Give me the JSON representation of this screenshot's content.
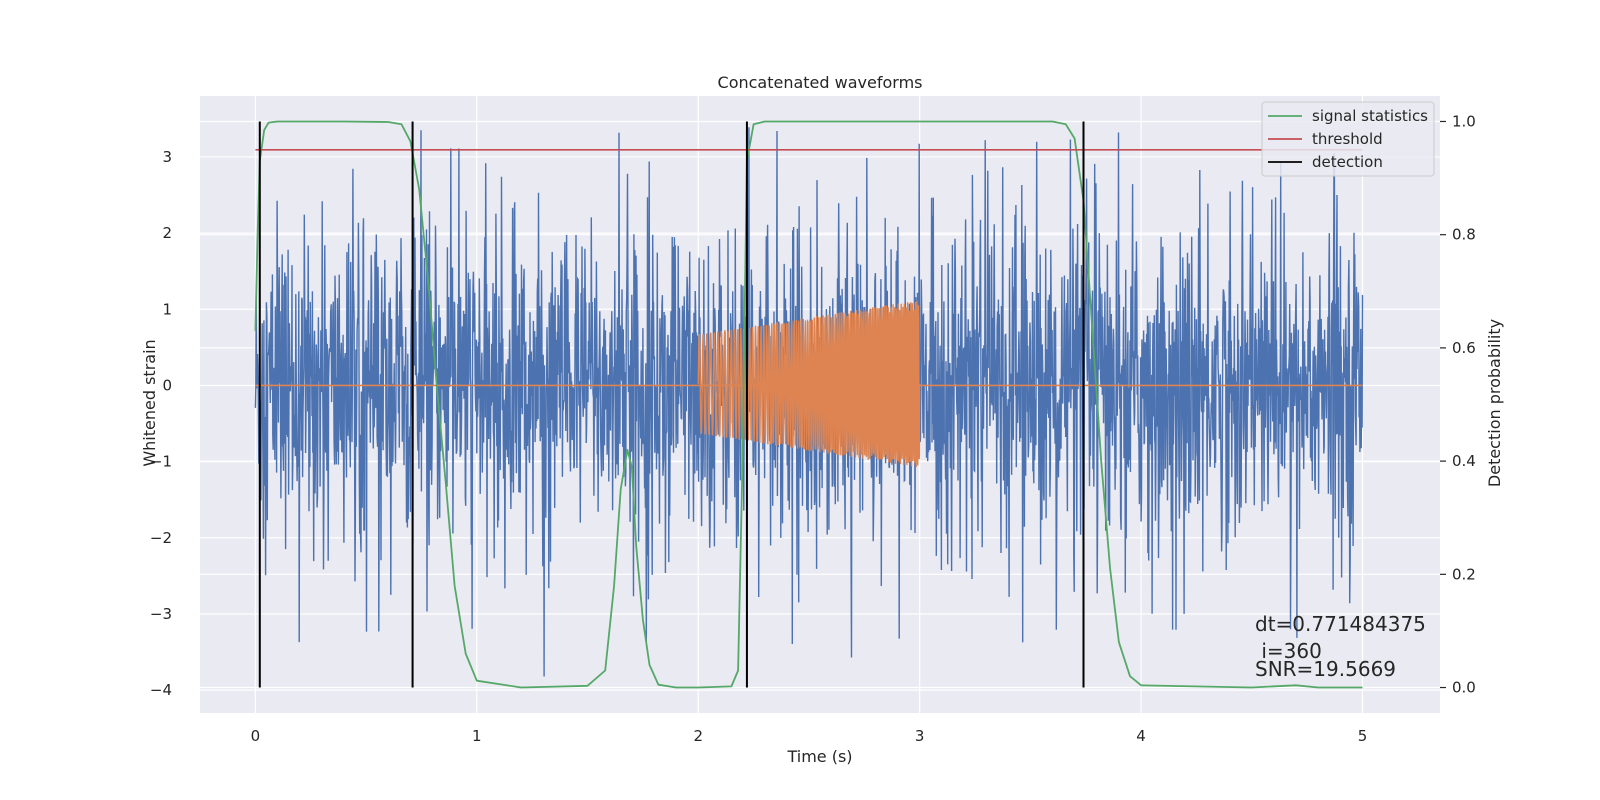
{
  "chart_data": {
    "type": "line",
    "title": "Concatenated waveforms",
    "xlabel": "Time (s)",
    "ylabel": "Whitened strain",
    "y2label": "Detection probability",
    "xlim": [
      -0.25,
      5.35
    ],
    "ylim": [
      -4.3,
      3.8
    ],
    "y2lim": [
      -0.045,
      1.045
    ],
    "x_ticks": [
      0,
      1,
      2,
      3,
      4,
      5
    ],
    "x_tick_labels": [
      "0",
      "1",
      "2",
      "3",
      "4",
      "5"
    ],
    "y_ticks": [
      -4,
      -3,
      -2,
      -1,
      0,
      1,
      2,
      3
    ],
    "y_tick_labels": [
      "−4",
      "−3",
      "−2",
      "−1",
      "0",
      "1",
      "2",
      "3"
    ],
    "y2_ticks": [
      0.0,
      0.2,
      0.4,
      0.6,
      0.8,
      1.0
    ],
    "y2_tick_labels": [
      "0.0",
      "0.2",
      "0.4",
      "0.6",
      "0.8",
      "1.0"
    ],
    "grid": true,
    "legend_position": "top-right",
    "series": [
      {
        "name": "",
        "role": "noisy strain",
        "axis": "left",
        "color": "#4c72b0",
        "x_range": [
          0,
          5
        ],
        "amplitude_range": [
          -4.1,
          3.5
        ]
      },
      {
        "name": "",
        "role": "injected chirp",
        "axis": "left",
        "color": "#dd8452",
        "x_range": [
          2,
          3
        ],
        "amplitude_start": 0.65,
        "amplitude_end": 1.1
      },
      {
        "name": "signal statistics",
        "axis": "right",
        "color": "#55a868",
        "x": [
          0.0,
          0.01,
          0.02,
          0.04,
          0.06,
          0.1,
          0.2,
          0.4,
          0.6,
          0.66,
          0.7,
          0.74,
          0.78,
          0.82,
          0.86,
          0.9,
          0.95,
          1.0,
          1.2,
          1.5,
          1.58,
          1.62,
          1.65,
          1.68,
          1.7,
          1.72,
          1.75,
          1.78,
          1.82,
          1.9,
          2.0,
          2.15,
          2.18,
          2.2,
          2.22,
          2.25,
          2.3,
          2.4,
          3.0,
          3.6,
          3.66,
          3.7,
          3.74,
          3.78,
          3.82,
          3.86,
          3.9,
          3.95,
          4.0,
          4.5,
          4.65,
          4.7,
          4.8,
          5.0
        ],
        "y": [
          0.63,
          0.8,
          0.93,
          0.985,
          0.998,
          1.0,
          1.0,
          1.0,
          0.999,
          0.995,
          0.965,
          0.88,
          0.72,
          0.53,
          0.36,
          0.18,
          0.06,
          0.012,
          0.0,
          0.003,
          0.03,
          0.18,
          0.35,
          0.42,
          0.39,
          0.25,
          0.12,
          0.04,
          0.005,
          0.0,
          0.0,
          0.002,
          0.03,
          0.4,
          0.93,
          0.995,
          1.0,
          1.0,
          1.0,
          1.0,
          0.995,
          0.97,
          0.86,
          0.63,
          0.4,
          0.21,
          0.08,
          0.02,
          0.004,
          0.0,
          0.003,
          0.004,
          0.0,
          0.0
        ]
      },
      {
        "name": "threshold",
        "axis": "right",
        "color": "#c44e52",
        "x": [
          0,
          5
        ],
        "value": 0.95
      },
      {
        "name": "detection",
        "axis": "right",
        "color": "#000000",
        "x": [
          0.02,
          0.71,
          2.22,
          3.74
        ],
        "y_range": [
          0,
          1
        ]
      }
    ],
    "annotations": [
      "dt=0.771484375",
      " i=360",
      "SNR=19.5669"
    ]
  },
  "colors": {
    "plot_background": "#eaeaf2",
    "grid": "#ffffff",
    "figure_background": "#ffffff"
  }
}
